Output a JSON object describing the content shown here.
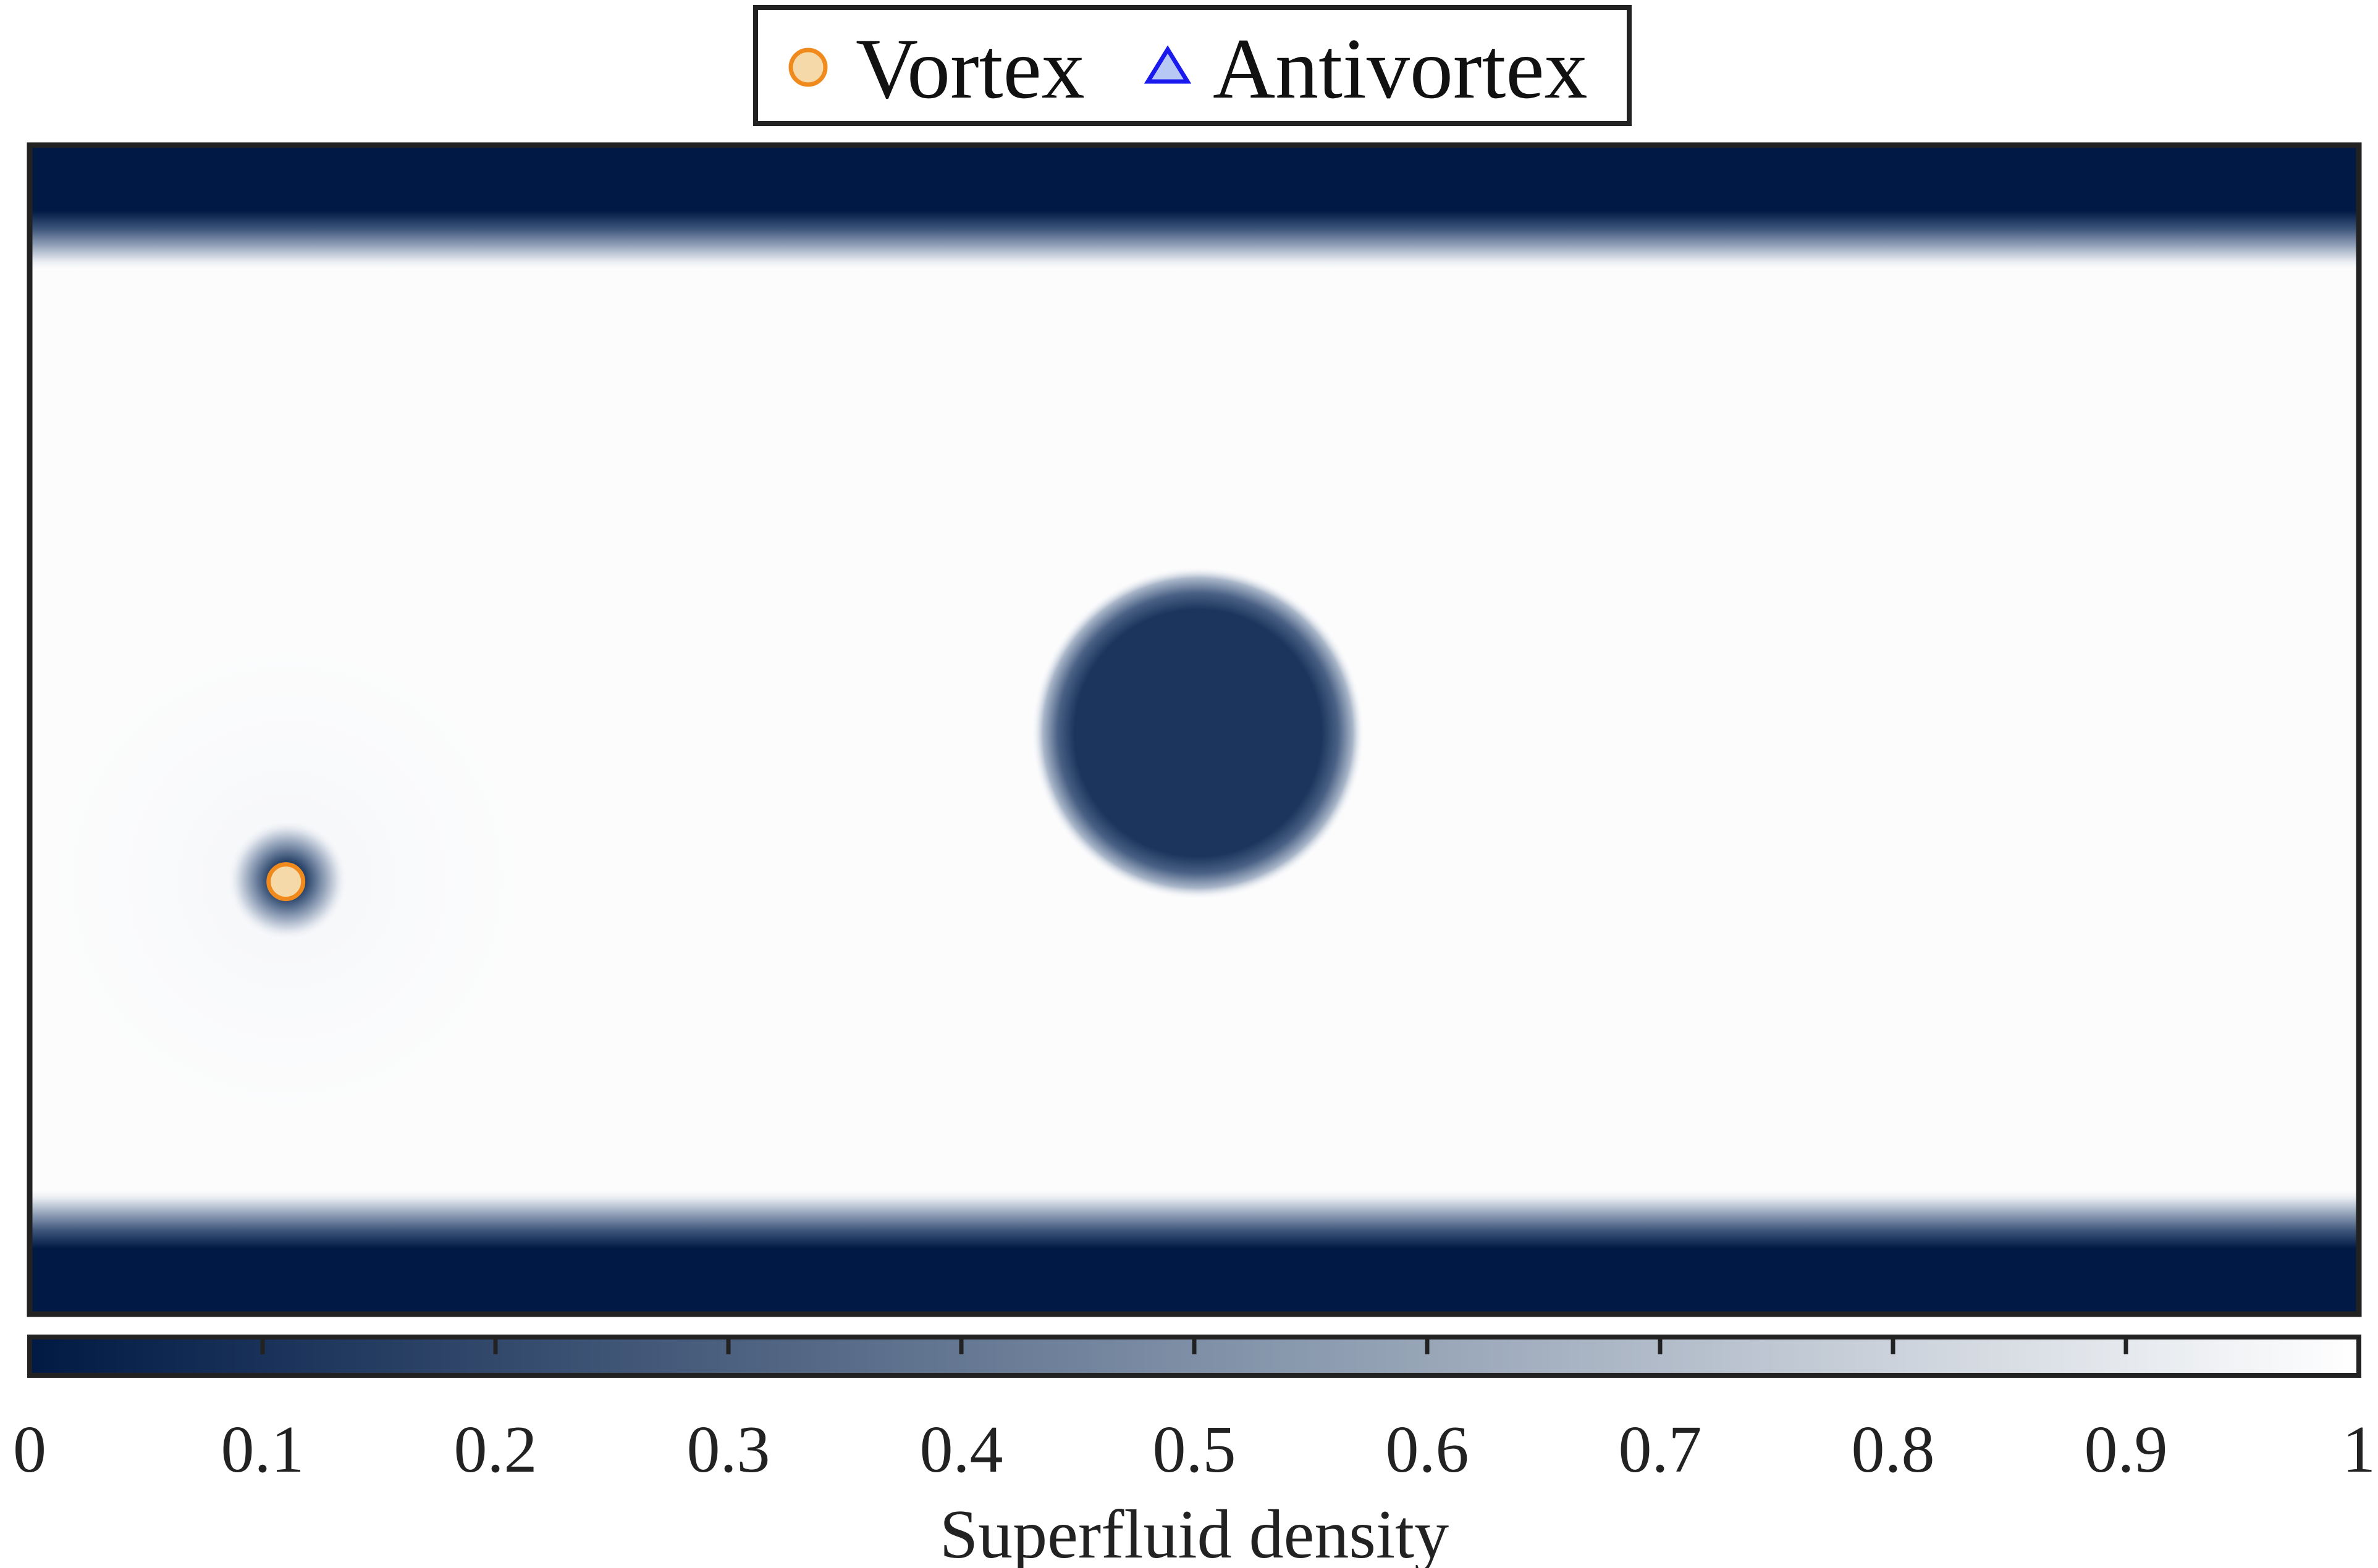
{
  "chart_data": {
    "type": "heatmap",
    "title": "",
    "xlabel": "",
    "ylabel": "",
    "colorbar": {
      "label": "Superfluid density",
      "range": [
        0,
        1
      ],
      "ticks": [
        0,
        0.1,
        0.2,
        0.3,
        0.4,
        0.5,
        0.6,
        0.7,
        0.8,
        0.9,
        1
      ],
      "tick_labels": [
        "0",
        "0.1",
        "0.2",
        "0.3",
        "0.4",
        "0.5",
        "0.6",
        "0.7",
        "0.8",
        "0.9",
        "1"
      ],
      "colormap": [
        "#001a45",
        "#ffffff"
      ]
    },
    "field": {
      "bulk_density": 1.0,
      "boundary_density": 0.0,
      "boundaries": [
        "top",
        "bottom"
      ],
      "obstacle": {
        "center": [
          0.5,
          0.5
        ],
        "radius": 0.065,
        "density": 0.2
      },
      "vortex_core": {
        "center": [
          0.11,
          0.63
        ],
        "radius": 0.025,
        "density": 0.15
      }
    },
    "legend": {
      "placement": "top-center",
      "entries": [
        {
          "label": "Vortex",
          "marker": "circle",
          "edge_color": "#f08a1c",
          "face_color": "#f5d9a8"
        },
        {
          "label": "Antivortex",
          "marker": "triangle",
          "edge_color": "#1a1aee",
          "face_color": "#b8c8f5"
        }
      ]
    },
    "series": [
      {
        "name": "Vortex",
        "points": [
          [
            0.11,
            0.63
          ]
        ]
      },
      {
        "name": "Antivortex",
        "points": []
      }
    ],
    "grid": false
  }
}
